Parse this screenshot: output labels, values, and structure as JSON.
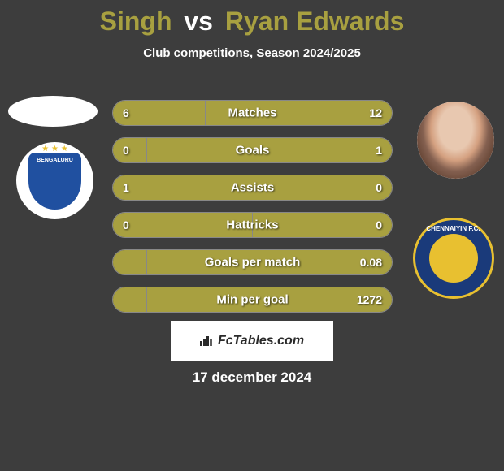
{
  "title": {
    "player1": "Singh",
    "vs": "vs",
    "player2": "Ryan Edwards"
  },
  "subtitle": "Club competitions, Season 2024/2025",
  "colors": {
    "background": "#3d3d3d",
    "accent": "#a8a040",
    "text": "#ffffff",
    "club_left_primary": "#2050a0",
    "club_right_primary": "#1a3a7a",
    "club_right_accent": "#e8c030"
  },
  "club_left": {
    "name": "BENGALURU"
  },
  "club_right": {
    "name": "CHENNAIYIN F.C."
  },
  "stats": [
    {
      "label": "Matches",
      "left_value": "6",
      "right_value": "12",
      "left_pct": 33,
      "right_pct": 67
    },
    {
      "label": "Goals",
      "left_value": "0",
      "right_value": "1",
      "left_pct": 12,
      "right_pct": 88
    },
    {
      "label": "Assists",
      "left_value": "1",
      "right_value": "0",
      "left_pct": 88,
      "right_pct": 12
    },
    {
      "label": "Hattricks",
      "left_value": "0",
      "right_value": "0",
      "left_pct": 50,
      "right_pct": 50
    },
    {
      "label": "Goals per match",
      "left_value": "",
      "right_value": "0.08",
      "left_pct": 12,
      "right_pct": 88
    },
    {
      "label": "Min per goal",
      "left_value": "",
      "right_value": "1272",
      "left_pct": 12,
      "right_pct": 88
    }
  ],
  "watermark": "FcTables.com",
  "date": "17 december 2024"
}
